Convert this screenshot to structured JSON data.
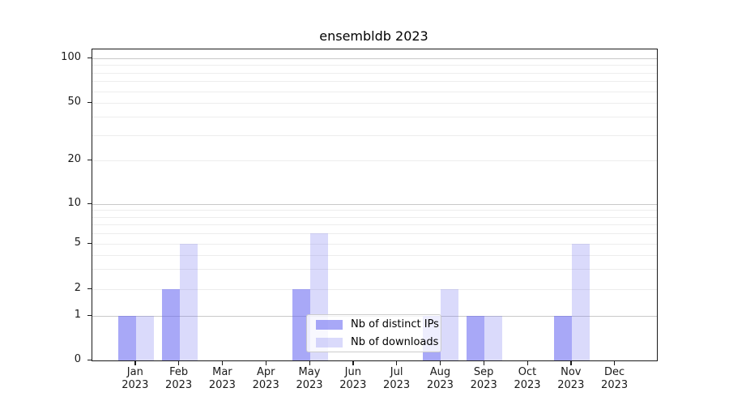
{
  "chart_data": {
    "type": "bar",
    "title": "ensembldb 2023",
    "year": "2023",
    "categories": [
      "Jan",
      "Feb",
      "Mar",
      "Apr",
      "May",
      "Jun",
      "Jul",
      "Aug",
      "Sep",
      "Oct",
      "Nov",
      "Dec"
    ],
    "series": [
      {
        "name": "Nb of distinct IPs",
        "color": "#6464f0",
        "alpha": 0.56,
        "values": [
          1,
          2,
          0,
          0,
          2,
          0,
          0,
          1,
          1,
          0,
          1,
          0
        ]
      },
      {
        "name": "Nb of downloads",
        "color": "#6464f0",
        "alpha": 0.24,
        "values": [
          1,
          5,
          0,
          0,
          6,
          0,
          0,
          2,
          1,
          0,
          5,
          0
        ]
      }
    ],
    "y_axis": {
      "scale": "symlog",
      "ticks": [
        0,
        1,
        2,
        5,
        10,
        20,
        50,
        100
      ],
      "major_gridlines": [
        1,
        10,
        100
      ],
      "minor_gridlines": [
        2,
        3,
        4,
        5,
        6,
        7,
        8,
        9,
        20,
        30,
        40,
        50,
        60,
        70,
        80,
        90
      ],
      "range": [
        0,
        110
      ]
    },
    "legend": {
      "position": "lower center"
    },
    "colors": {
      "bar_base": "#6464f0",
      "major_grid": "#c9c9c9",
      "minor_grid": "#ededed",
      "axis": "#1a1a1a"
    }
  }
}
